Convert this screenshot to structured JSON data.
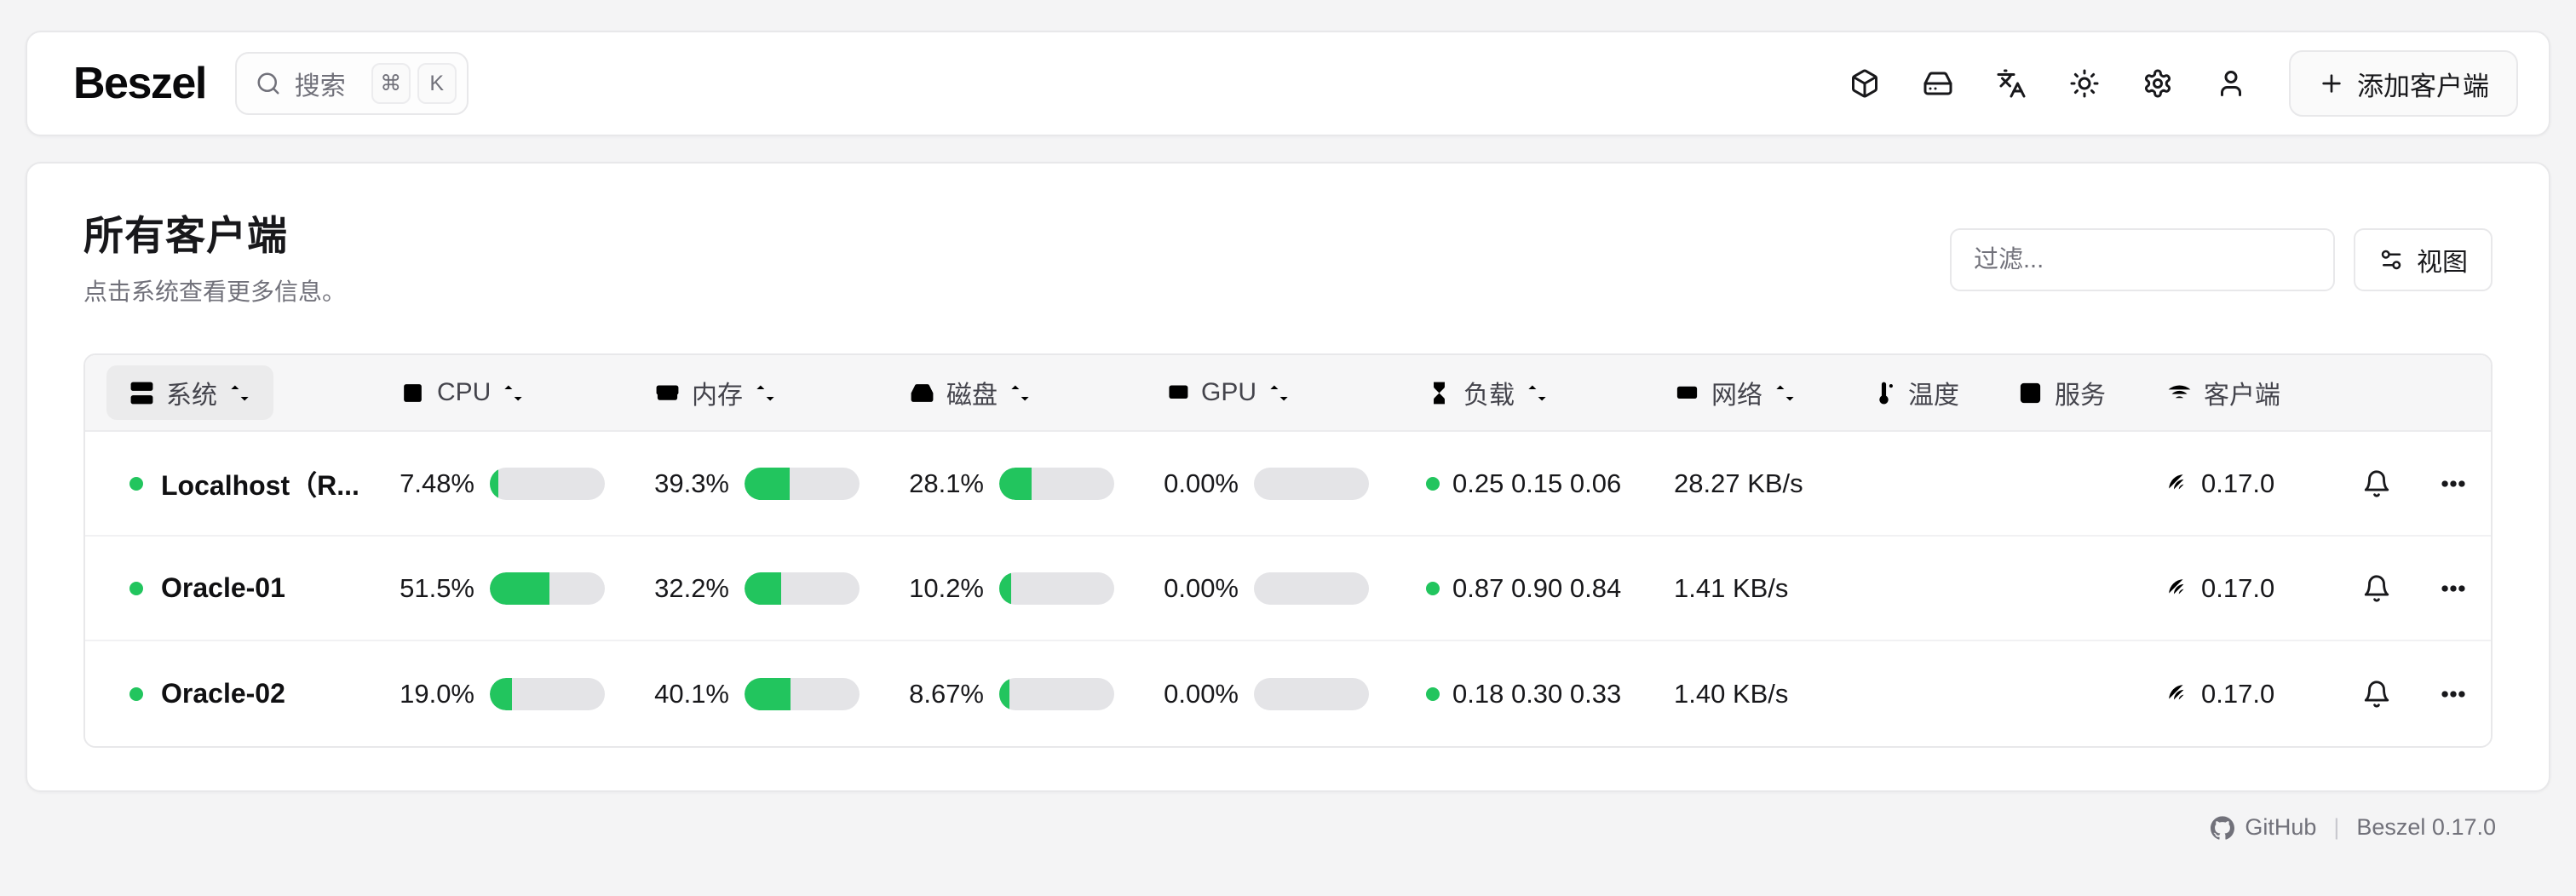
{
  "app": {
    "logo": "Beszel"
  },
  "header": {
    "search": {
      "label": "搜索",
      "kbd_meta": "⌘",
      "kbd_key": "K"
    },
    "nav_icons": [
      "box-icon",
      "harddrive-icon",
      "languages-icon",
      "sun-icon",
      "gear-icon",
      "user-icon"
    ],
    "add_button_label": "添加客户端"
  },
  "main": {
    "title": "所有客户端",
    "subtitle": "点击系统查看更多信息。",
    "filter_placeholder": "过滤...",
    "view_button_label": "视图",
    "table": {
      "columns": [
        {
          "id": "system",
          "label": "系统",
          "icon": "server-icon",
          "sortable": true,
          "active": true
        },
        {
          "id": "cpu",
          "label": "CPU",
          "icon": "cpu-icon",
          "sortable": true,
          "active": false
        },
        {
          "id": "memory",
          "label": "内存",
          "icon": "memory-icon",
          "sortable": true,
          "active": false
        },
        {
          "id": "disk",
          "label": "磁盘",
          "icon": "disk-icon",
          "sortable": true,
          "active": false
        },
        {
          "id": "gpu",
          "label": "GPU",
          "icon": "gpu-icon",
          "sortable": true,
          "active": false
        },
        {
          "id": "load",
          "label": "负载",
          "icon": "hourglass-icon",
          "sortable": true,
          "active": false
        },
        {
          "id": "network",
          "label": "网络",
          "icon": "ethernet-icon",
          "sortable": true,
          "active": false
        },
        {
          "id": "temperature",
          "label": "温度",
          "icon": "thermometer-icon",
          "sortable": false,
          "active": false
        },
        {
          "id": "services",
          "label": "服务",
          "icon": "terminal-icon",
          "sortable": false,
          "active": false
        },
        {
          "id": "agent",
          "label": "客户端",
          "icon": "wifi-icon",
          "sortable": false,
          "active": false
        }
      ],
      "rows": [
        {
          "name": "Localhost（R...",
          "status": "up",
          "cpu": "7.48%",
          "cpu_pct": 7.48,
          "memory": "39.3%",
          "memory_pct": 39.3,
          "disk": "28.1%",
          "disk_pct": 28.1,
          "gpu": "0.00%",
          "gpu_pct": 0,
          "load": "0.25 0.15 0.06",
          "network": "28.27 KB/s",
          "agent_version": "0.17.0"
        },
        {
          "name": "Oracle-01",
          "status": "up",
          "cpu": "51.5%",
          "cpu_pct": 51.5,
          "memory": "32.2%",
          "memory_pct": 32.2,
          "disk": "10.2%",
          "disk_pct": 10.2,
          "gpu": "0.00%",
          "gpu_pct": 0,
          "load": "0.87 0.90 0.84",
          "network": "1.41 KB/s",
          "agent_version": "0.17.0"
        },
        {
          "name": "Oracle-02",
          "status": "up",
          "cpu": "19.0%",
          "cpu_pct": 19.0,
          "memory": "40.1%",
          "memory_pct": 40.1,
          "disk": "8.67%",
          "disk_pct": 8.67,
          "gpu": "0.00%",
          "gpu_pct": 0,
          "load": "0.18 0.30 0.33",
          "network": "1.40 KB/s",
          "agent_version": "0.17.0"
        }
      ]
    }
  },
  "footer": {
    "github_label": "GitHub",
    "version_label": "Beszel 0.17.0"
  },
  "colors": {
    "accent_green": "#22c55e",
    "meter_track": "#e4e4e7",
    "card_border": "#e8e8ea",
    "muted_text": "#71717a"
  }
}
